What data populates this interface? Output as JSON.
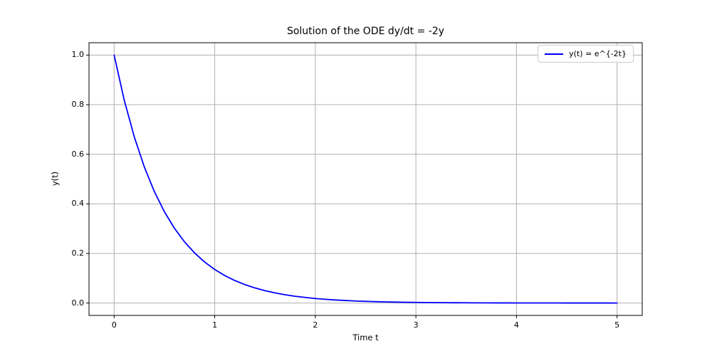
{
  "chart_data": {
    "type": "line",
    "title": "Solution of the ODE dy/dt = -2y",
    "xlabel": "Time t",
    "ylabel": "y(t)",
    "xlim": [
      -0.25,
      5.25
    ],
    "ylim": [
      -0.05,
      1.05
    ],
    "xticks": [
      0,
      1,
      2,
      3,
      4,
      5
    ],
    "xticklabels": [
      "0",
      "1",
      "2",
      "3",
      "4",
      "5"
    ],
    "yticks": [
      0.0,
      0.2,
      0.4,
      0.6,
      0.8,
      1.0
    ],
    "yticklabels": [
      "0.0",
      "0.2",
      "0.4",
      "0.6",
      "0.8",
      "1.0"
    ],
    "grid": true,
    "grid_color": "#b0b0b0",
    "spine_color": "#000000",
    "background": "#ffffff",
    "legend": {
      "position": "upper-right",
      "entries": [
        {
          "label": "y(t) = e^{-2t}",
          "color": "#0000ff"
        }
      ]
    },
    "series": [
      {
        "name": "y(t) = e^{-2t}",
        "color": "#0000ff",
        "x": [
          0.0,
          0.1,
          0.2,
          0.3,
          0.4,
          0.5,
          0.6,
          0.7,
          0.8,
          0.9,
          1.0,
          1.1,
          1.2,
          1.3,
          1.4,
          1.5,
          1.6,
          1.7,
          1.8,
          1.9,
          2.0,
          2.1,
          2.2,
          2.3,
          2.4,
          2.5,
          2.6,
          2.7,
          2.8,
          2.9,
          3.0,
          3.1,
          3.2,
          3.3,
          3.4,
          3.5,
          3.6,
          3.7,
          3.8,
          3.9,
          4.0,
          4.1,
          4.2,
          4.3,
          4.4,
          4.5,
          4.6,
          4.7,
          4.8,
          4.9,
          5.0
        ],
        "y": [
          1.0,
          0.8187,
          0.6703,
          0.5488,
          0.4493,
          0.3679,
          0.3012,
          0.2466,
          0.2019,
          0.1653,
          0.1353,
          0.1108,
          0.0907,
          0.0743,
          0.0608,
          0.0498,
          0.0408,
          0.0334,
          0.0273,
          0.0224,
          0.0183,
          0.015,
          0.0123,
          0.0101,
          0.0082,
          0.0067,
          0.0055,
          0.0045,
          0.0037,
          0.003,
          0.0025,
          0.002,
          0.0017,
          0.0014,
          0.0011,
          0.0009,
          0.0007,
          0.0006,
          0.0005,
          0.0004,
          0.0003,
          0.0003,
          0.0002,
          0.0002,
          0.0002,
          0.0001,
          0.0001,
          0.0001,
          0.0001,
          0.0001,
          0.0
        ]
      }
    ]
  }
}
